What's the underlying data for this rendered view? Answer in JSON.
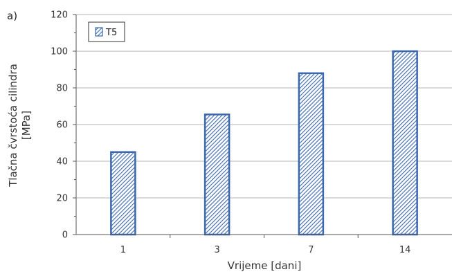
{
  "panel_label": "a)",
  "colors": {
    "bar_stroke": "#3a67b0",
    "hatch": "#3a67b0",
    "grid": "#b3b3b3",
    "axis": "#555555"
  },
  "chart_data": {
    "type": "bar",
    "categories": [
      "1",
      "3",
      "7",
      "14"
    ],
    "series": [
      {
        "name": "T5",
        "values": [
          45,
          65.5,
          88,
          100
        ]
      }
    ],
    "xlabel": "Vrijeme [dani]",
    "ylabel_lines": [
      "Tlačna čvrstoća cilindra",
      "[MPa]"
    ],
    "ylim": [
      0,
      120
    ],
    "yticks": [
      0,
      20,
      40,
      60,
      80,
      100,
      120
    ],
    "grid": true,
    "legend_position": "top-left"
  }
}
